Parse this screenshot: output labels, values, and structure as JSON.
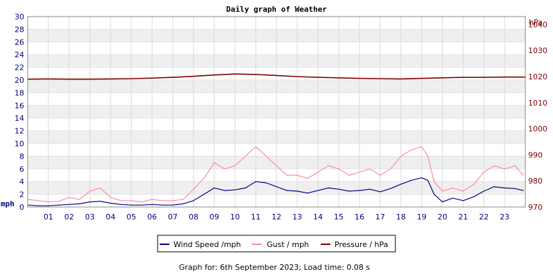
{
  "chart_data": {
    "type": "line",
    "title": "Daily graph of Weather",
    "left_axis": {
      "unit": "mph",
      "range": [
        0,
        30
      ],
      "ticks": [
        "0",
        "2",
        "4",
        "6",
        "8",
        "10",
        "12",
        "14",
        "16",
        "18",
        "20",
        "22",
        "24",
        "26",
        "28",
        "30"
      ]
    },
    "right_axis": {
      "unit": "hPa",
      "range": [
        970,
        1043
      ],
      "ticks": [
        "970",
        "980",
        "990",
        "1000",
        "1010",
        "1020",
        "1030",
        "1040"
      ]
    },
    "x_ticks": [
      "01",
      "02",
      "03",
      "04",
      "05",
      "06",
      "07",
      "08",
      "09",
      "10",
      "11",
      "12",
      "13",
      "14",
      "15",
      "16",
      "17",
      "18",
      "19",
      "20",
      "21",
      "22",
      "23"
    ],
    "x_range": [
      0,
      24
    ],
    "grid": true,
    "legend_placement": "bottom",
    "series": [
      {
        "name": "Wind Speed /mph",
        "axis": "left",
        "color": "#000080",
        "x": [
          0,
          0.5,
          1,
          1.5,
          2,
          2.5,
          3,
          3.5,
          4,
          4.5,
          5,
          5.5,
          6,
          6.5,
          7,
          7.5,
          8,
          8.5,
          9,
          9.5,
          10,
          10.5,
          11,
          11.5,
          12,
          12.5,
          13,
          13.5,
          14,
          14.5,
          15,
          15.5,
          16,
          16.5,
          17,
          17.5,
          18,
          18.5,
          19,
          19.3,
          19.6,
          20,
          20.5,
          21,
          21.5,
          22,
          22.5,
          23,
          23.5,
          23.9
        ],
        "values": [
          0.3,
          0.2,
          0.2,
          0.3,
          0.4,
          0.5,
          0.8,
          0.9,
          0.6,
          0.4,
          0.3,
          0.3,
          0.4,
          0.3,
          0.3,
          0.5,
          1.0,
          2.0,
          3.0,
          2.6,
          2.7,
          3.0,
          4.0,
          3.8,
          3.2,
          2.6,
          2.5,
          2.2,
          2.6,
          3.0,
          2.8,
          2.5,
          2.6,
          2.8,
          2.4,
          2.9,
          3.6,
          4.2,
          4.6,
          4.2,
          2.0,
          0.8,
          1.4,
          1.0,
          1.6,
          2.5,
          3.2,
          3.0,
          2.9,
          2.6
        ]
      },
      {
        "name": "Gust / mph",
        "axis": "left",
        "color": "#ff88aa",
        "x": [
          0,
          0.5,
          1,
          1.5,
          2,
          2.5,
          3,
          3.5,
          4,
          4.5,
          5,
          5.5,
          6,
          6.5,
          7,
          7.5,
          8,
          8.5,
          9,
          9.5,
          10,
          10.5,
          11,
          11.5,
          12,
          12.5,
          13,
          13.5,
          14,
          14.5,
          15,
          15.5,
          16,
          16.5,
          17,
          17.5,
          18,
          18.5,
          19,
          19.3,
          19.6,
          20,
          20.5,
          21,
          21.5,
          22,
          22.5,
          23,
          23.5,
          23.9
        ],
        "values": [
          1.2,
          1.0,
          0.8,
          0.9,
          1.5,
          1.2,
          2.5,
          3.0,
          1.5,
          1.0,
          1.0,
          0.8,
          1.2,
          1.0,
          1.0,
          1.2,
          2.8,
          4.5,
          7.0,
          6.0,
          6.5,
          8.0,
          9.5,
          8.0,
          6.5,
          5.0,
          5.0,
          4.5,
          5.5,
          6.5,
          6.0,
          5.0,
          5.5,
          6.0,
          5.0,
          6.0,
          8.0,
          9.0,
          9.5,
          8.0,
          4.0,
          2.5,
          3.0,
          2.5,
          3.5,
          5.5,
          6.5,
          6.0,
          6.5,
          5.0
        ]
      },
      {
        "name": "Pressure / hPa",
        "axis": "right",
        "color": "#800000",
        "x": [
          0,
          1,
          2,
          3,
          4,
          5,
          6,
          7,
          8,
          9,
          10,
          11,
          12,
          13,
          14,
          15,
          16,
          17,
          18,
          19,
          20,
          21,
          22,
          23,
          24
        ],
        "values": [
          1019.0,
          1019.1,
          1019.0,
          1019.0,
          1019.1,
          1019.2,
          1019.4,
          1019.7,
          1020.1,
          1020.6,
          1021.0,
          1020.8,
          1020.4,
          1020.0,
          1019.7,
          1019.5,
          1019.3,
          1019.2,
          1019.1,
          1019.3,
          1019.5,
          1019.7,
          1019.7,
          1019.8,
          1019.8
        ]
      }
    ]
  },
  "footer": "Graph for: 6th September 2023; Load time: 0.08 s"
}
